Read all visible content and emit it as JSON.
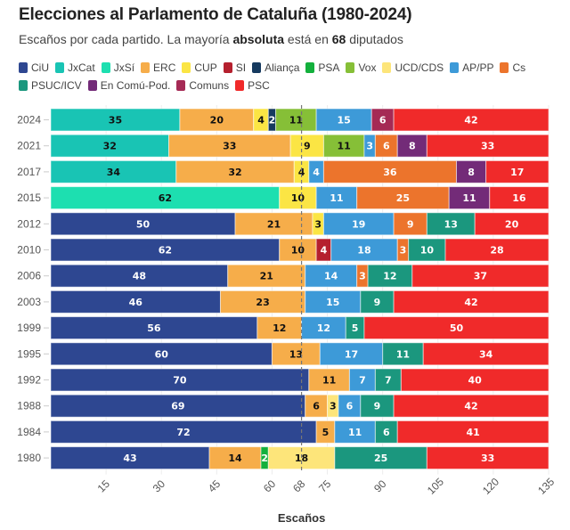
{
  "chart_data": {
    "type": "bar",
    "orientation": "horizontal-stacked",
    "title": "Elecciones al Parlamento de Cataluña (1980-2024)",
    "subtitle_parts": [
      "Escaños por cada partido. La mayoría ",
      "absoluta",
      " está en ",
      "68",
      " diputados"
    ],
    "xlabel": "Escaños",
    "ylabel": "",
    "xlim": [
      0,
      135
    ],
    "xticks": [
      15,
      30,
      45,
      60,
      68,
      75,
      90,
      105,
      120,
      135
    ],
    "majority_line": 68,
    "legend_position": "top",
    "parties": [
      {
        "name": "CiU",
        "color": "#2e4791",
        "text": "#ffffff"
      },
      {
        "name": "JxCat",
        "color": "#19c4b4",
        "text": "#111111"
      },
      {
        "name": "JxSí",
        "color": "#1ddfb0",
        "text": "#111111"
      },
      {
        "name": "ERC",
        "color": "#f6ad4a",
        "text": "#111111"
      },
      {
        "name": "CUP",
        "color": "#fbe544",
        "text": "#111111"
      },
      {
        "name": "SI",
        "color": "#b5202e",
        "text": "#ffffff"
      },
      {
        "name": "Aliança",
        "color": "#163a5f",
        "text": "#ffffff"
      },
      {
        "name": "PSA",
        "color": "#13b03c",
        "text": "#ffffff"
      },
      {
        "name": "Vox",
        "color": "#86bf37",
        "text": "#111111"
      },
      {
        "name": "UCD/CDS",
        "color": "#fde57a",
        "text": "#111111"
      },
      {
        "name": "AP/PP",
        "color": "#3d9ad8",
        "text": "#ffffff"
      },
      {
        "name": "Cs",
        "color": "#ec742c",
        "text": "#ffffff"
      },
      {
        "name": "PSUC/ICV",
        "color": "#1b977e",
        "text": "#ffffff"
      },
      {
        "name": "En Comú-Pod.",
        "color": "#732b78",
        "text": "#ffffff"
      },
      {
        "name": "Comuns",
        "color": "#a52a55",
        "text": "#ffffff"
      },
      {
        "name": "PSC",
        "color": "#f02a2a",
        "text": "#ffffff"
      }
    ],
    "rows": [
      {
        "year": "2024",
        "segments": [
          [
            "JxCat",
            35
          ],
          [
            "ERC",
            20
          ],
          [
            "CUP",
            4
          ],
          [
            "Aliança",
            2
          ],
          [
            "Vox",
            11
          ],
          [
            "AP/PP",
            15
          ],
          [
            "Comuns",
            6
          ],
          [
            "PSC",
            42
          ]
        ]
      },
      {
        "year": "2021",
        "segments": [
          [
            "JxCat",
            32
          ],
          [
            "ERC",
            33
          ],
          [
            "CUP",
            9
          ],
          [
            "Vox",
            11
          ],
          [
            "AP/PP",
            3
          ],
          [
            "Cs",
            6
          ],
          [
            "En Comú-Pod.",
            8
          ],
          [
            "PSC",
            33
          ]
        ]
      },
      {
        "year": "2017",
        "segments": [
          [
            "JxCat",
            34
          ],
          [
            "ERC",
            32
          ],
          [
            "CUP",
            4
          ],
          [
            "AP/PP",
            4
          ],
          [
            "Cs",
            36
          ],
          [
            "En Comú-Pod.",
            8
          ],
          [
            "PSC",
            17
          ]
        ]
      },
      {
        "year": "2015",
        "segments": [
          [
            "JxSí",
            62
          ],
          [
            "CUP",
            10
          ],
          [
            "AP/PP",
            11
          ],
          [
            "Cs",
            25
          ],
          [
            "En Comú-Pod.",
            11
          ],
          [
            "PSC",
            16
          ]
        ]
      },
      {
        "year": "2012",
        "segments": [
          [
            "CiU",
            50
          ],
          [
            "ERC",
            21
          ],
          [
            "CUP",
            3
          ],
          [
            "AP/PP",
            19
          ],
          [
            "Cs",
            9
          ],
          [
            "PSUC/ICV",
            13
          ],
          [
            "PSC",
            20
          ]
        ]
      },
      {
        "year": "2010",
        "segments": [
          [
            "CiU",
            62
          ],
          [
            "ERC",
            10
          ],
          [
            "SI",
            4
          ],
          [
            "AP/PP",
            18
          ],
          [
            "Cs",
            3
          ],
          [
            "PSUC/ICV",
            10
          ],
          [
            "PSC",
            28
          ]
        ]
      },
      {
        "year": "2006",
        "segments": [
          [
            "CiU",
            48
          ],
          [
            "ERC",
            21
          ],
          [
            "AP/PP",
            14
          ],
          [
            "Cs",
            3
          ],
          [
            "PSUC/ICV",
            12
          ],
          [
            "PSC",
            37
          ]
        ]
      },
      {
        "year": "2003",
        "segments": [
          [
            "CiU",
            46
          ],
          [
            "ERC",
            23
          ],
          [
            "AP/PP",
            15
          ],
          [
            "PSUC/ICV",
            9
          ],
          [
            "PSC",
            42
          ]
        ]
      },
      {
        "year": "1999",
        "segments": [
          [
            "CiU",
            56
          ],
          [
            "ERC",
            12
          ],
          [
            "AP/PP",
            12
          ],
          [
            "PSUC/ICV",
            5
          ],
          [
            "PSC",
            50
          ]
        ]
      },
      {
        "year": "1995",
        "segments": [
          [
            "CiU",
            60
          ],
          [
            "ERC",
            13
          ],
          [
            "AP/PP",
            17
          ],
          [
            "PSUC/ICV",
            11
          ],
          [
            "PSC",
            34
          ]
        ]
      },
      {
        "year": "1992",
        "segments": [
          [
            "CiU",
            70
          ],
          [
            "ERC",
            11
          ],
          [
            "AP/PP",
            7
          ],
          [
            "PSUC/ICV",
            7
          ],
          [
            "PSC",
            40
          ]
        ]
      },
      {
        "year": "1988",
        "segments": [
          [
            "CiU",
            69
          ],
          [
            "ERC",
            6
          ],
          [
            "UCD/CDS",
            3
          ],
          [
            "AP/PP",
            6
          ],
          [
            "PSUC/ICV",
            9
          ],
          [
            "PSC",
            42
          ]
        ]
      },
      {
        "year": "1984",
        "segments": [
          [
            "CiU",
            72
          ],
          [
            "ERC",
            5
          ],
          [
            "AP/PP",
            11
          ],
          [
            "PSUC/ICV",
            6
          ],
          [
            "PSC",
            41
          ]
        ]
      },
      {
        "year": "1980",
        "segments": [
          [
            "CiU",
            43
          ],
          [
            "ERC",
            14
          ],
          [
            "PSA",
            2
          ],
          [
            "UCD/CDS",
            18
          ],
          [
            "PSUC/ICV",
            25
          ],
          [
            "PSC",
            33
          ]
        ]
      }
    ]
  }
}
